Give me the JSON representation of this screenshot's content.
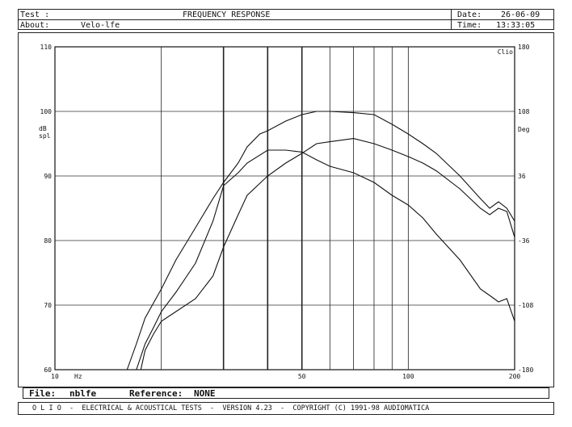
{
  "header": {
    "test_label": "Test :",
    "title": "FREQUENCY RESPONSE",
    "date_label": "Date:",
    "date": "26-06-09",
    "about_label": "About:",
    "about": "Velo-lfe",
    "time_label": "Time:",
    "time": "13:33:05"
  },
  "footer": {
    "file_label": "File:",
    "file": "nblfe",
    "reference_label": "Reference:",
    "reference": "NONE",
    "banner": "O L I O  -  ELECTRICAL & ACOUSTICAL TESTS  -  VERSION 4.23  -  COPYRIGHT (C) 1991-98 AUDIOMATICA"
  },
  "chart_data": {
    "type": "line",
    "title": "FREQUENCY RESPONSE",
    "x_scale": "log",
    "xlim": [
      10,
      200
    ],
    "x_ticks": [
      {
        "value": 10,
        "label": "10"
      },
      {
        "value": 50,
        "label": "50"
      },
      {
        "value": 100,
        "label": "100"
      },
      {
        "value": 200,
        "label": "200"
      }
    ],
    "x_unit": "Hz",
    "vertical_gridlines": [
      20,
      30,
      40,
      50,
      60,
      70,
      80,
      90,
      100
    ],
    "bold_gridlines": [
      30,
      40,
      50
    ],
    "ylim": [
      60,
      110
    ],
    "y_ticks": [
      60,
      70,
      80,
      90,
      100,
      110
    ],
    "ylabel": [
      "dB",
      "spl"
    ],
    "y2lim": [
      -180,
      180
    ],
    "y2_ticks": [
      {
        "value": -180,
        "label": "-180"
      },
      {
        "value": -108,
        "label": "-108"
      },
      {
        "value": -36,
        "label": "-36"
      },
      {
        "value": 36,
        "label": "36"
      },
      {
        "value": 108,
        "label": "108"
      },
      {
        "value": 180,
        "label": "180"
      }
    ],
    "y2label": "Deg",
    "corner_label": "Clio",
    "grid": true,
    "series": [
      {
        "points": [
          [
            16,
            60
          ],
          [
            17,
            64
          ],
          [
            18,
            68
          ],
          [
            20,
            72.5
          ],
          [
            22,
            77
          ],
          [
            25,
            82
          ],
          [
            28,
            86.5
          ],
          [
            30,
            89
          ],
          [
            33,
            92
          ],
          [
            35,
            94.5
          ],
          [
            38,
            96.5
          ],
          [
            40,
            97
          ],
          [
            45,
            98.5
          ],
          [
            50,
            99.5
          ],
          [
            55,
            100
          ],
          [
            60,
            100
          ],
          [
            70,
            99.8
          ],
          [
            80,
            99.5
          ],
          [
            90,
            98
          ],
          [
            100,
            96.5
          ],
          [
            110,
            95
          ],
          [
            120,
            93.5
          ],
          [
            140,
            90
          ],
          [
            160,
            86.5
          ],
          [
            170,
            85
          ],
          [
            180,
            86
          ],
          [
            190,
            85
          ],
          [
            200,
            83
          ]
        ]
      },
      {
        "points": [
          [
            17,
            60
          ],
          [
            18,
            64
          ],
          [
            19,
            66.5
          ],
          [
            20,
            69
          ],
          [
            22,
            72
          ],
          [
            25,
            76.5
          ],
          [
            28,
            83
          ],
          [
            30,
            88.5
          ],
          [
            33,
            90.5
          ],
          [
            35,
            92
          ],
          [
            40,
            94
          ],
          [
            45,
            94
          ],
          [
            50,
            93.7
          ],
          [
            55,
            92.5
          ],
          [
            60,
            91.5
          ],
          [
            70,
            90.5
          ],
          [
            80,
            89
          ],
          [
            90,
            87
          ],
          [
            100,
            85.5
          ],
          [
            110,
            83.5
          ],
          [
            120,
            81
          ],
          [
            140,
            77
          ],
          [
            160,
            72.5
          ],
          [
            170,
            71.5
          ],
          [
            180,
            70.5
          ],
          [
            190,
            71
          ],
          [
            200,
            67.5
          ]
        ]
      },
      {
        "points": [
          [
            17.5,
            60
          ],
          [
            18,
            63
          ],
          [
            19,
            65.5
          ],
          [
            20,
            67.5
          ],
          [
            22,
            69
          ],
          [
            25,
            71
          ],
          [
            28,
            74.5
          ],
          [
            30,
            79
          ],
          [
            33,
            84
          ],
          [
            35,
            87
          ],
          [
            40,
            90
          ],
          [
            45,
            92
          ],
          [
            50,
            93.5
          ],
          [
            55,
            95
          ],
          [
            60,
            95.3
          ],
          [
            70,
            95.8
          ],
          [
            80,
            95
          ],
          [
            90,
            94
          ],
          [
            100,
            93
          ],
          [
            110,
            92
          ],
          [
            120,
            90.8
          ],
          [
            140,
            88
          ],
          [
            160,
            85
          ],
          [
            170,
            84
          ],
          [
            180,
            85
          ],
          [
            190,
            84.5
          ],
          [
            200,
            80.5
          ]
        ]
      }
    ]
  }
}
